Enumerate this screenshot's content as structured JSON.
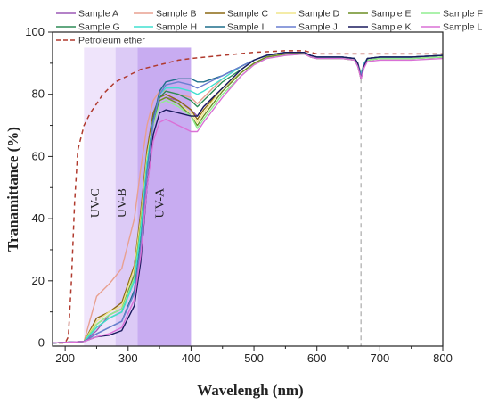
{
  "chart_data": {
    "type": "line",
    "title": "",
    "xlabel": "Wavelengh (nm)",
    "ylabel": "Tranamittance (%)",
    "xlim": [
      180,
      800
    ],
    "ylim": [
      -1,
      100
    ],
    "x_ticks": [
      200,
      300,
      400,
      500,
      600,
      700,
      800
    ],
    "y_ticks": [
      0,
      20,
      40,
      60,
      80,
      100
    ],
    "grid": false,
    "legend_position": "top",
    "bands": [
      {
        "label": "UV-C",
        "from": 230,
        "to": 280,
        "color": "#efe4fb"
      },
      {
        "label": "UV-B",
        "from": 280,
        "to": 315,
        "color": "#dccaf6"
      },
      {
        "label": "UV-A",
        "from": 315,
        "to": 400,
        "color": "#c8acf1"
      }
    ],
    "reference_line": {
      "x": 670,
      "color": "#aaaaaa",
      "style": "dashed"
    },
    "x": [
      180,
      230,
      250,
      270,
      290,
      310,
      320,
      330,
      340,
      350,
      360,
      380,
      400,
      410,
      420,
      450,
      480,
      500,
      520,
      550,
      580,
      590,
      600,
      620,
      640,
      660,
      665,
      670,
      675,
      680,
      700,
      720,
      750,
      800
    ],
    "series": [
      {
        "name": "Sample A",
        "color": "#9b59b6",
        "dash": false,
        "values": [
          0,
          0.5,
          4,
          9,
          11,
          22,
          38,
          60,
          72,
          78,
          79,
          78,
          75,
          73,
          76,
          82,
          87,
          90,
          92,
          93,
          93,
          92,
          91.5,
          91.5,
          91.5,
          91,
          89,
          86,
          89,
          91,
          91.5,
          91.5,
          91.5,
          92
        ]
      },
      {
        "name": "Sample B",
        "color": "#e8a090",
        "dash": false,
        "values": [
          0,
          0.5,
          15,
          19,
          24,
          40,
          56,
          70,
          78,
          81,
          81,
          80,
          79,
          77,
          79,
          85,
          89,
          91,
          92.5,
          93.5,
          93.5,
          92.5,
          92,
          92,
          92,
          91.5,
          90,
          87,
          90,
          91.5,
          92,
          92,
          92,
          92.5
        ]
      },
      {
        "name": "Sample C",
        "color": "#8b6914",
        "dash": false,
        "values": [
          0,
          0.5,
          8,
          10,
          13,
          25,
          42,
          62,
          74,
          79,
          80,
          78,
          75,
          72,
          75,
          82,
          87,
          90,
          92,
          93,
          93.5,
          92.5,
          92,
          92,
          92,
          91.5,
          90,
          86,
          89.5,
          91.5,
          92,
          92,
          92,
          92.5
        ]
      },
      {
        "name": "Sample D",
        "color": "#f0e68c",
        "dash": false,
        "values": [
          0,
          0.5,
          7,
          10,
          12,
          24,
          40,
          60,
          72,
          78,
          79,
          77,
          74,
          71,
          74,
          82,
          87,
          90,
          92,
          93,
          93,
          92,
          91.5,
          91.5,
          91.5,
          91,
          89.5,
          86,
          89.5,
          91,
          91.5,
          91.5,
          91.5,
          92
        ]
      },
      {
        "name": "Sample E",
        "color": "#6b8e23",
        "dash": false,
        "values": [
          0,
          0.5,
          6,
          9,
          11,
          22,
          38,
          58,
          71,
          78,
          79,
          77,
          73,
          70,
          73,
          81,
          87,
          90,
          92,
          93,
          93,
          92,
          91.5,
          91.5,
          91.5,
          91,
          89,
          85,
          89,
          91,
          91.5,
          91.5,
          91.5,
          92
        ]
      },
      {
        "name": "Sample F",
        "color": "#90ee90",
        "dash": false,
        "values": [
          0,
          0.5,
          6,
          9,
          11,
          21,
          37,
          57,
          70,
          77,
          78,
          76,
          73,
          69,
          72,
          80,
          86,
          89.5,
          91.5,
          92.5,
          93,
          92,
          91.5,
          91.5,
          91.5,
          91,
          89,
          85.5,
          89,
          91,
          91.5,
          91.5,
          91.5,
          92
        ]
      },
      {
        "name": "Sample G",
        "color": "#2e8b57",
        "dash": false,
        "values": [
          0,
          0.5,
          5,
          8,
          10,
          20,
          35,
          57,
          71,
          79,
          81,
          80,
          78,
          76,
          78,
          84,
          88,
          91,
          92.5,
          93.5,
          93.5,
          92.5,
          92,
          92,
          92,
          91.5,
          90,
          86,
          89.5,
          91.5,
          92,
          92,
          92,
          92.5
        ]
      },
      {
        "name": "Sample H",
        "color": "#40e0d0",
        "dash": false,
        "values": [
          0,
          0.5,
          5,
          8,
          10,
          20,
          36,
          58,
          72,
          80,
          82,
          82,
          81,
          80,
          81,
          85,
          89,
          91,
          92.5,
          93.5,
          93.5,
          92.5,
          92,
          92,
          92,
          91.5,
          90,
          86.5,
          90,
          91.5,
          92,
          92,
          92,
          92.5
        ]
      },
      {
        "name": "Sample I",
        "color": "#1f6f8b",
        "dash": false,
        "values": [
          0,
          0.5,
          3,
          5,
          7,
          17,
          32,
          55,
          72,
          81,
          84,
          85,
          85,
          84,
          84,
          86,
          89,
          91,
          92.5,
          93.5,
          93.5,
          92.5,
          92,
          92,
          92,
          91.5,
          90,
          86,
          89.5,
          91.5,
          92,
          92,
          92,
          92.5
        ]
      },
      {
        "name": "Sample J",
        "color": "#6a7fd0",
        "dash": false,
        "values": [
          0,
          0.5,
          3,
          5,
          7,
          16,
          31,
          54,
          71,
          80,
          83,
          84,
          83,
          82,
          83,
          86,
          89,
          91,
          92.5,
          93.5,
          93.5,
          92.5,
          92,
          92,
          92,
          91.5,
          90,
          86,
          89.5,
          91.5,
          92,
          92,
          92,
          92.5
        ]
      },
      {
        "name": "Sample K",
        "color": "#1a1a5e",
        "dash": false,
        "values": [
          0,
          0.5,
          2,
          2.5,
          4,
          12,
          26,
          50,
          67,
          74,
          75,
          74,
          73,
          73,
          76,
          82,
          88,
          91,
          92.5,
          93.5,
          93.5,
          92.5,
          92,
          92,
          92,
          91.5,
          90,
          85,
          89,
          91.5,
          92,
          92,
          92,
          92.5
        ]
      },
      {
        "name": "Sample L",
        "color": "#da70d6",
        "dash": false,
        "values": [
          0,
          0.5,
          2,
          3,
          5,
          14,
          28,
          50,
          65,
          71,
          72,
          70,
          68,
          68,
          71,
          79,
          86,
          89.5,
          91.5,
          92.5,
          93,
          92,
          91.5,
          91.5,
          91.5,
          91,
          89,
          85,
          88.5,
          90.5,
          91,
          91,
          91,
          91.5
        ]
      }
    ],
    "reference_series": {
      "name": "Petroleum ether",
      "color": "#b03a2e",
      "dash": true,
      "x": [
        190,
        200,
        205,
        210,
        215,
        220,
        230,
        240,
        250,
        260,
        270,
        280,
        300,
        320,
        340,
        360,
        380,
        400,
        450,
        500,
        550,
        580,
        600,
        650,
        700,
        750,
        800
      ],
      "values": [
        0,
        0,
        2,
        20,
        45,
        62,
        70,
        74,
        77,
        80,
        82,
        84,
        86,
        88,
        89,
        90,
        91,
        91.5,
        92.5,
        93.5,
        94,
        94,
        93,
        93,
        93,
        93,
        93
      ]
    }
  }
}
